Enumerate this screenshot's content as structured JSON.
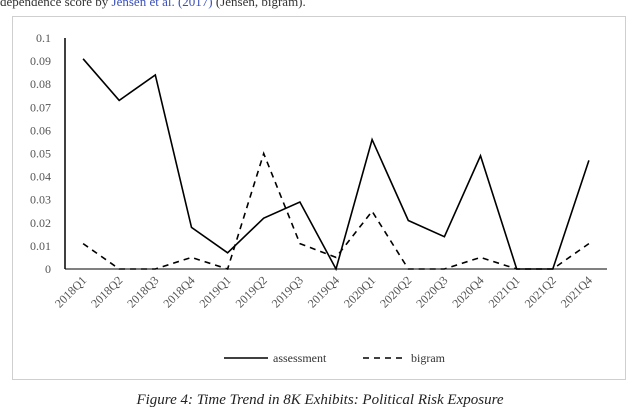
{
  "header_text": {
    "prefix": "dependence score by ",
    "link": "Jensen et al. (2017)",
    "suffix": " (Jensen, bigram)."
  },
  "caption": "Figure 4: Time Trend in 8K Exhibits: Political Risk Exposure",
  "chart_data": {
    "type": "line",
    "categories": [
      "2018Q1",
      "2018Q2",
      "2018Q3",
      "2018Q4",
      "2019Q1",
      "2019Q2",
      "2019Q3",
      "2019Q4",
      "2020Q1",
      "2020Q2",
      "2020Q3",
      "2020Q4",
      "2021Q1",
      "2021Q2",
      "2021Q4"
    ],
    "series": [
      {
        "name": "assessment",
        "style": "solid",
        "color": "#000000",
        "values": [
          0.091,
          0.073,
          0.084,
          0.018,
          0.007,
          0.022,
          0.029,
          0.0,
          0.056,
          0.021,
          0.014,
          0.049,
          0.0,
          0.0,
          0.047
        ]
      },
      {
        "name": "bigram",
        "style": "dashed",
        "color": "#000000",
        "values": [
          0.011,
          0.0,
          0.0,
          0.005,
          0.0,
          0.05,
          0.011,
          0.005,
          0.025,
          0.0,
          0.0,
          0.005,
          0.0,
          0.0,
          0.011
        ]
      }
    ],
    "yticks": [
      "0",
      "0.01",
      "0.02",
      "0.03",
      "0.04",
      "0.05",
      "0.06",
      "0.07",
      "0.08",
      "0.09",
      "0.1"
    ],
    "ylim": [
      0,
      0.1
    ],
    "title": "",
    "xlabel": "",
    "ylabel": "",
    "grid": false,
    "legend_position": "bottom"
  }
}
